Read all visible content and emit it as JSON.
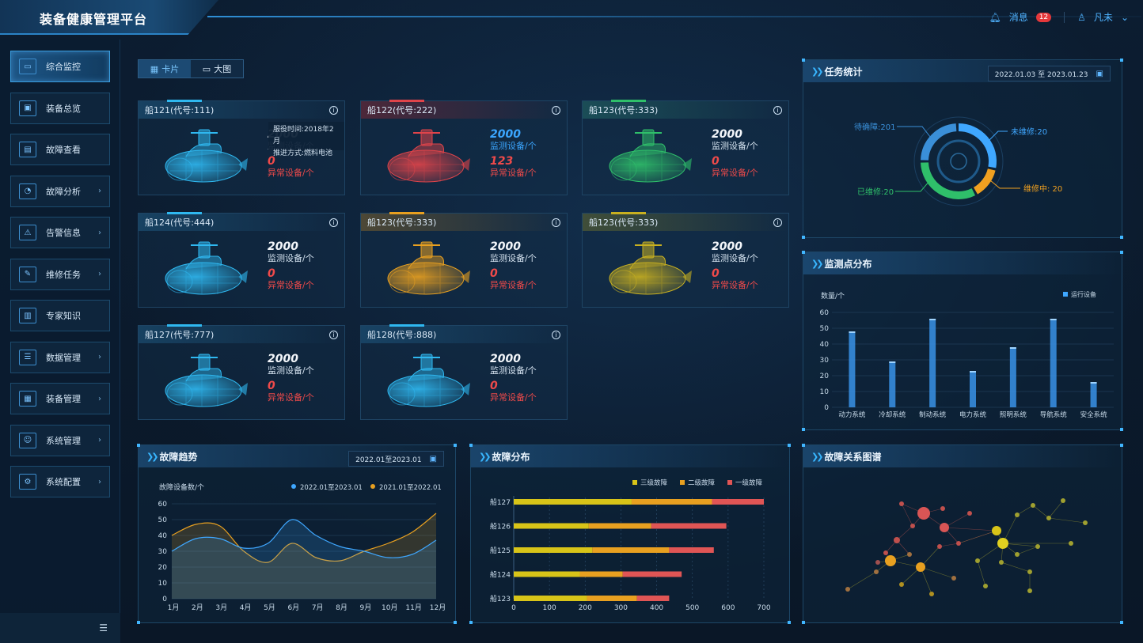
{
  "app": {
    "title": "装备健康管理平台"
  },
  "topbar": {
    "messages_label": "消息",
    "message_count": "12",
    "user_name": "凡未"
  },
  "sidebar": {
    "items": [
      {
        "label": "综合监控",
        "icon": "monitor-icon",
        "arrow": false,
        "active": true
      },
      {
        "label": "装备总览",
        "icon": "screen-icon",
        "arrow": false
      },
      {
        "label": "故障查看",
        "icon": "document-icon",
        "arrow": false
      },
      {
        "label": "故障分析",
        "icon": "gauge-icon",
        "arrow": true
      },
      {
        "label": "告警信息",
        "icon": "warning-icon",
        "arrow": true
      },
      {
        "label": "维修任务",
        "icon": "wrench-icon",
        "arrow": true
      },
      {
        "label": "专家知识",
        "icon": "book-icon",
        "arrow": false
      },
      {
        "label": "数据管理",
        "icon": "database-icon",
        "arrow": true
      },
      {
        "label": "装备管理",
        "icon": "server-icon",
        "arrow": true
      },
      {
        "label": "系统管理",
        "icon": "user-settings-icon",
        "arrow": true
      },
      {
        "label": "系统配置",
        "icon": "gear-icon",
        "arrow": true
      }
    ]
  },
  "view_toggle": {
    "card_label": "卡片",
    "big_label": "大图"
  },
  "ships": [
    {
      "name": "船121(代号:111)",
      "theme": "blue",
      "monitor": "2000",
      "monitor_label": "监测设备/个",
      "abnormal": "0",
      "abnormal_label": "异常设备/个",
      "tooltip": [
        "服役时间:2018年2月",
        "推进方式:燃料电池"
      ]
    },
    {
      "name": "船122(代号:222)",
      "theme": "red",
      "monitor": "2000",
      "monitor_label": "监测设备/个",
      "abnormal": "123",
      "abnormal_label": "异常设备/个"
    },
    {
      "name": "船123(代号:333)",
      "theme": "green",
      "monitor": "2000",
      "monitor_label": "监测设备/个",
      "abnormal": "0",
      "abnormal_label": "异常设备/个"
    },
    {
      "name": "船124(代号:444)",
      "theme": "blue",
      "monitor": "2000",
      "monitor_label": "监测设备/个",
      "abnormal": "0",
      "abnormal_label": "异常设备/个"
    },
    {
      "name": "船123(代号:333)",
      "theme": "orange",
      "monitor": "2000",
      "monitor_label": "监测设备/个",
      "abnormal": "0",
      "abnormal_label": "异常设备/个"
    },
    {
      "name": "船123(代号:333)",
      "theme": "olive",
      "monitor": "2000",
      "monitor_label": "监测设备/个",
      "abnormal": "0",
      "abnormal_label": "异常设备/个"
    },
    {
      "name": "船127(代号:777)",
      "theme": "blue",
      "monitor": "2000",
      "monitor_label": "监测设备/个",
      "abnormal": "0",
      "abnormal_label": "异常设备/个"
    },
    {
      "name": "船128(代号:888)",
      "theme": "blue",
      "monitor": "2000",
      "monitor_label": "监测设备/个",
      "abnormal": "0",
      "abnormal_label": "异常设备/个"
    }
  ],
  "themes": {
    "blue": "#2fb8f0",
    "red": "#e0444a",
    "green": "#2fbf6a",
    "orange": "#e8a020",
    "olive": "#c8b020"
  },
  "task_stats": {
    "title": "任务统计",
    "date_range": "2022.01.03 至 2023.01.23",
    "items": [
      {
        "label": "待确障:201",
        "value": 201,
        "color": "#3a8fd8"
      },
      {
        "label": "未维修:20",
        "value": 20,
        "color": "#3fa7ff"
      },
      {
        "label": "维修中:  20",
        "value": 20,
        "color": "#f0a020"
      },
      {
        "label": "已维修:20",
        "value": 20,
        "color": "#2fbf6a"
      }
    ]
  },
  "monitor_dist": {
    "title": "监测点分布",
    "chart_data": {
      "type": "bar",
      "ylabel": "数量/个",
      "legend": "运行设备",
      "categories": [
        "动力系统",
        "冷却系统",
        "制动系统",
        "电力系统",
        "照明系统",
        "导航系统",
        "安全系统"
      ],
      "values": [
        48,
        29,
        56,
        23,
        38,
        56,
        16
      ],
      "ylim": [
        0,
        60
      ],
      "yticks": [
        0,
        10,
        20,
        30,
        40,
        50,
        60
      ]
    }
  },
  "fault_trend": {
    "title": "故障趋势",
    "date_range": "2022.01至2023.01",
    "chart_data": {
      "type": "area",
      "ylabel": "故障设备数/个",
      "x": [
        "1月",
        "2月",
        "3月",
        "4月",
        "5月",
        "6月",
        "7月",
        "8月",
        "9月",
        "10月",
        "11月",
        "12月"
      ],
      "ylim": [
        0,
        60
      ],
      "yticks": [
        0,
        10,
        20,
        30,
        40,
        50,
        60
      ],
      "series": [
        {
          "name": "2022.01至2023.01",
          "color": "#3fa7ff",
          "values": [
            30,
            38,
            38,
            32,
            35,
            50,
            40,
            33,
            30,
            26,
            28,
            37
          ]
        },
        {
          "name": "2021.01至2022.01",
          "color": "#e8a020",
          "values": [
            40,
            47,
            46,
            30,
            23,
            35,
            26,
            24,
            30,
            35,
            42,
            54
          ]
        }
      ]
    }
  },
  "fault_dist": {
    "title": "故障分布",
    "chart_data": {
      "type": "bar",
      "orientation": "horizontal",
      "stacked": true,
      "categories": [
        "船127",
        "船126",
        "船125",
        "船124",
        "船123"
      ],
      "xlim": [
        0,
        700
      ],
      "xticks": [
        0,
        100,
        200,
        300,
        400,
        500,
        600,
        700
      ],
      "series": [
        {
          "name": "三级故障",
          "color": "#d8c418",
          "values": [
            330,
            210,
            220,
            185,
            205
          ]
        },
        {
          "name": "二级故障",
          "color": "#e8a020",
          "values": [
            225,
            175,
            215,
            120,
            140
          ]
        },
        {
          "name": "一级故障",
          "color": "#e05555",
          "values": [
            145,
            210,
            125,
            165,
            90
          ]
        }
      ]
    }
  },
  "fault_graph": {
    "title": "故障关系图谱"
  }
}
